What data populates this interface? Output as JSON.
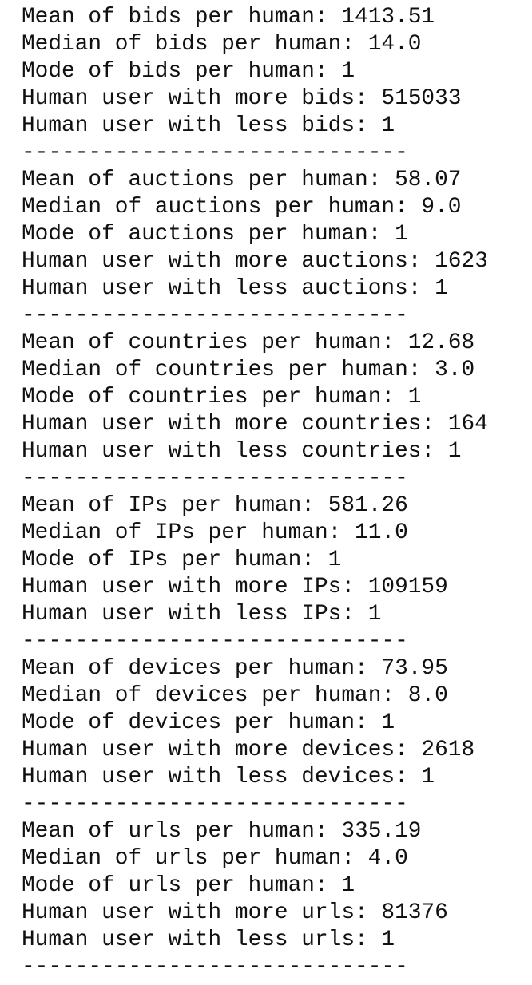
{
  "lines": [
    "Mean of bids per human: 1413.51",
    "Median of bids per human: 14.0",
    "Mode of bids per human: 1",
    "Human user with more bids: 515033",
    "Human user with less bids: 1",
    "-----------------------------",
    "Mean of auctions per human: 58.07",
    "Median of auctions per human: 9.0",
    "Mode of auctions per human: 1",
    "Human user with more auctions: 1623",
    "Human user with less auctions: 1",
    "-----------------------------",
    "Mean of countries per human: 12.68",
    "Median of countries per human: 3.0",
    "Mode of countries per human: 1",
    "Human user with more countries: 164",
    "Human user with less countries: 1",
    "-----------------------------",
    "Mean of IPs per human: 581.26",
    "Median of IPs per human: 11.0",
    "Mode of IPs per human: 1",
    "Human user with more IPs: 109159",
    "Human user with less IPs: 1",
    "-----------------------------",
    "Mean of devices per human: 73.95",
    "Median of devices per human: 8.0",
    "Mode of devices per human: 1",
    "Human user with more devices: 2618",
    "Human user with less devices: 1",
    "-----------------------------",
    "Mean of urls per human: 335.19",
    "Median of urls per human: 4.0",
    "Mode of urls per human: 1",
    "Human user with more urls: 81376",
    "Human user with less urls: 1",
    "-----------------------------"
  ]
}
